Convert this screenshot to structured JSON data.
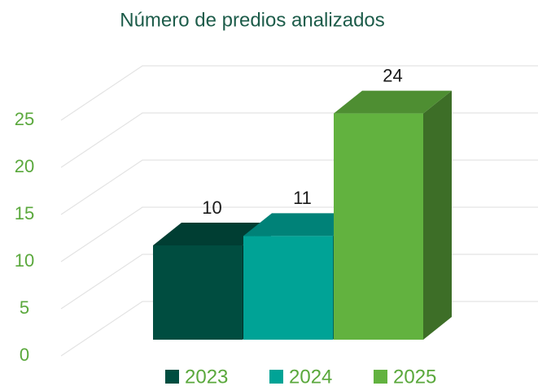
{
  "chart_data": {
    "type": "bar",
    "title": "Número de predios analizados",
    "categories": [
      null
    ],
    "series": [
      {
        "name": "2023",
        "color": "#004d40",
        "values": [
          10
        ]
      },
      {
        "name": "2024",
        "color": "#00a396",
        "values": [
          11
        ]
      },
      {
        "name": "2025",
        "color": "#62b23f",
        "values": [
          24
        ]
      }
    ],
    "ylim": [
      0,
      25
    ],
    "yticks": [
      0,
      5,
      10,
      15,
      20,
      25
    ],
    "grid": true,
    "legend": "bottom"
  }
}
